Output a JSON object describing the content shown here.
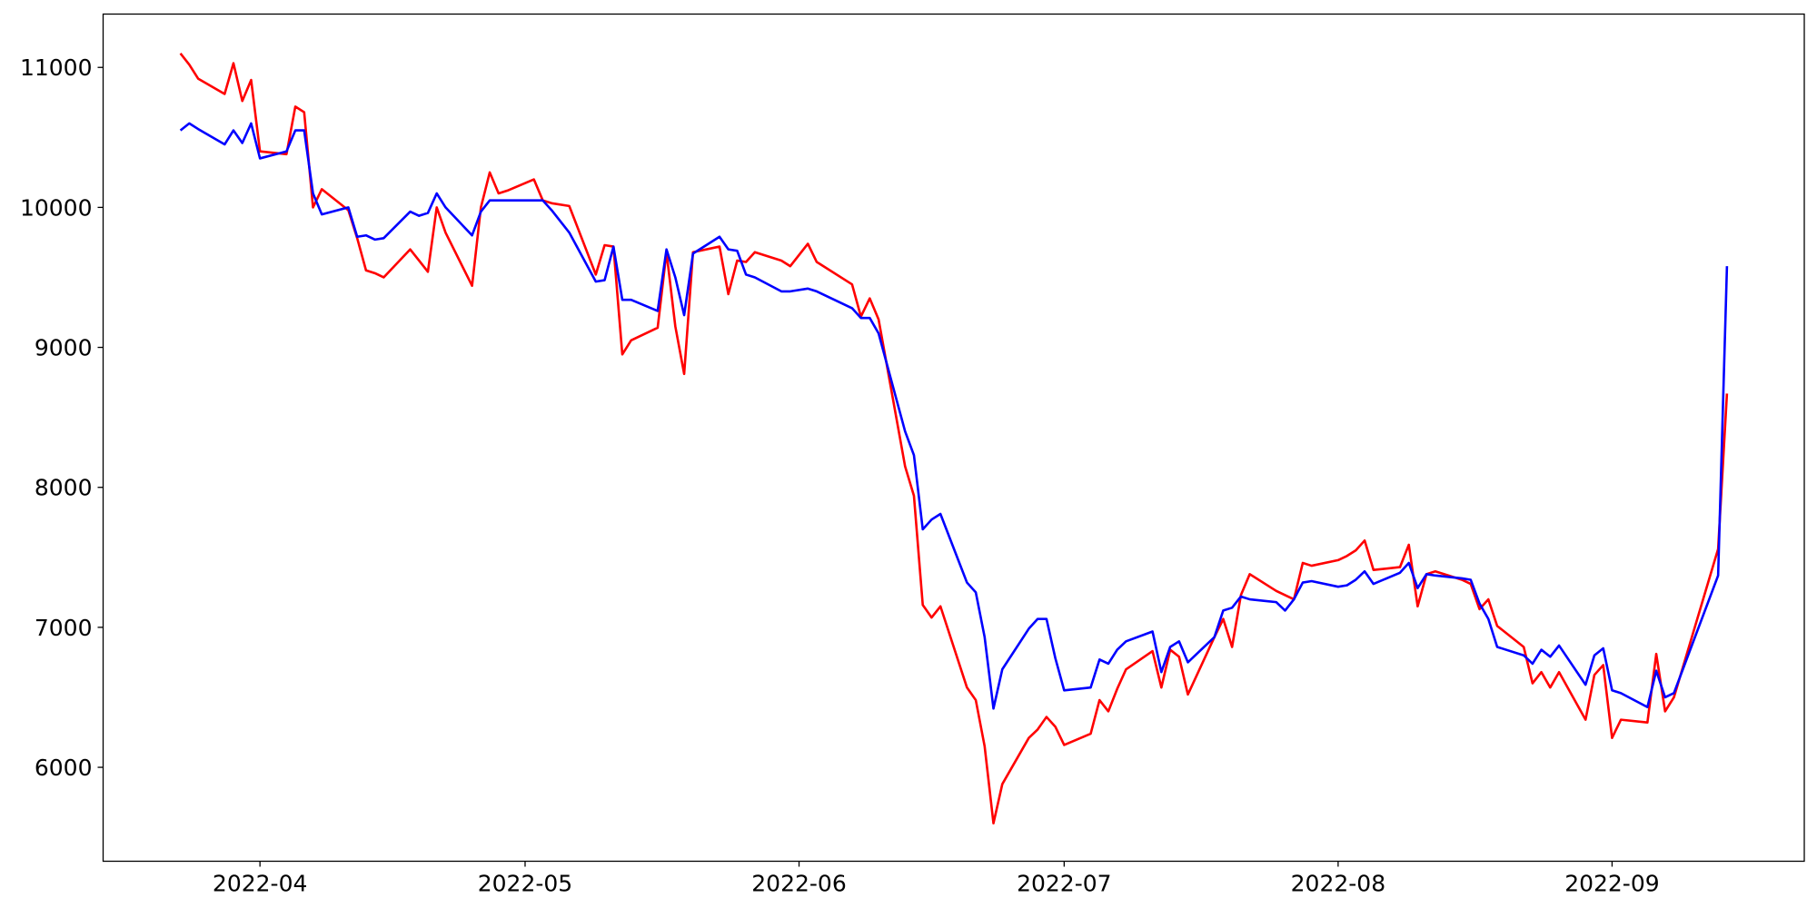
{
  "chart_data": {
    "type": "line",
    "x": [
      19074,
      19075,
      19076,
      19079,
      19080,
      19081,
      19082,
      19083,
      19086,
      19087,
      19088,
      19089,
      19090,
      19093,
      19094,
      19095,
      19096,
      19097,
      19100,
      19101,
      19102,
      19103,
      19104,
      19107,
      19108,
      19109,
      19110,
      19111,
      19114,
      19115,
      19116,
      19118,
      19121,
      19122,
      19123,
      19124,
      19125,
      19128,
      19129,
      19130,
      19131,
      19132,
      19135,
      19136,
      19137,
      19138,
      19139,
      19142,
      19143,
      19145,
      19146,
      19150,
      19151,
      19152,
      19153,
      19156,
      19157,
      19158,
      19159,
      19160,
      19163,
      19164,
      19165,
      19166,
      19167,
      19170,
      19171,
      19172,
      19173,
      19174,
      19177,
      19178,
      19179,
      19180,
      19181,
      19184,
      19185,
      19186,
      19187,
      19188,
      19191,
      19192,
      19193,
      19194,
      19195,
      19198,
      19199,
      19200,
      19201,
      19202,
      19205,
      19206,
      19207,
      19208,
      19209,
      19212,
      19213,
      19214,
      19215,
      19216,
      19219,
      19220,
      19221,
      19222,
      19223,
      19226,
      19227,
      19228,
      19229,
      19230,
      19233,
      19234,
      19235,
      19236,
      19237,
      19240,
      19241,
      19242,
      19243,
      19248,
      19249
    ],
    "series": [
      {
        "color": "red",
        "values": [
          11100,
          11020,
          10920,
          10810,
          11030,
          10760,
          10910,
          10400,
          10380,
          10720,
          10680,
          10000,
          10130,
          9980,
          9780,
          9550,
          9530,
          9500,
          9700,
          9620,
          9540,
          10000,
          9820,
          9440,
          10000,
          10250,
          10100,
          10120,
          10200,
          10050,
          10030,
          10010,
          9520,
          9730,
          9720,
          8950,
          9050,
          9140,
          9680,
          9150,
          8810,
          9680,
          9720,
          9380,
          9620,
          9610,
          9680,
          9620,
          9580,
          9740,
          9610,
          9450,
          9220,
          9350,
          9200,
          8150,
          7940,
          7160,
          7070,
          7150,
          6570,
          6480,
          6150,
          5600,
          5880,
          6210,
          6270,
          6360,
          6290,
          6160,
          6240,
          6480,
          6400,
          6560,
          6700,
          6830,
          6570,
          6840,
          6790,
          6520,
          6930,
          7060,
          6860,
          7230,
          7380,
          7260,
          7230,
          7200,
          7460,
          7440,
          7480,
          7510,
          7550,
          7620,
          7410,
          7430,
          7590,
          7150,
          7380,
          7400,
          7340,
          7310,
          7130,
          7200,
          7010,
          6860,
          6600,
          6680,
          6570,
          6680,
          6340,
          6660,
          6730,
          6210,
          6340,
          6320,
          6810,
          6400,
          6500,
          7560,
          8670
        ]
      },
      {
        "color": "blue",
        "values": [
          10550,
          10600,
          10560,
          10450,
          10550,
          10460,
          10600,
          10350,
          10400,
          10550,
          10550,
          10100,
          9950,
          10000,
          9790,
          9800,
          9770,
          9780,
          9970,
          9940,
          9960,
          10100,
          10000,
          9800,
          9970,
          10050,
          10050,
          10050,
          10050,
          10050,
          9980,
          9820,
          9470,
          9480,
          9720,
          9340,
          9340,
          9260,
          9700,
          9500,
          9230,
          9670,
          9790,
          9700,
          9690,
          9520,
          9500,
          9400,
          9400,
          9420,
          9400,
          9280,
          9210,
          9210,
          9100,
          8400,
          8230,
          7700,
          7770,
          7810,
          7320,
          7250,
          6930,
          6420,
          6700,
          6990,
          7060,
          7060,
          6780,
          6550,
          6570,
          6770,
          6740,
          6840,
          6900,
          6970,
          6680,
          6860,
          6900,
          6750,
          6930,
          7120,
          7140,
          7220,
          7200,
          7180,
          7120,
          7200,
          7320,
          7330,
          7290,
          7300,
          7340,
          7400,
          7310,
          7390,
          7460,
          7280,
          7380,
          7370,
          7350,
          7340,
          7170,
          7060,
          6860,
          6800,
          6740,
          6840,
          6790,
          6870,
          6590,
          6800,
          6850,
          6550,
          6530,
          6430,
          6690,
          6500,
          6530,
          7370,
          9580
        ]
      }
    ],
    "xlim": [
      19065.25,
      19257.75
    ],
    "xticks": [
      {
        "value": 19083,
        "label": "2022-04"
      },
      {
        "value": 19113,
        "label": "2022-05"
      },
      {
        "value": 19144,
        "label": "2022-06"
      },
      {
        "value": 19174,
        "label": "2022-07"
      },
      {
        "value": 19205,
        "label": "2022-08"
      },
      {
        "value": 19236,
        "label": "2022-09"
      }
    ],
    "ylim": [
      5329,
      11381
    ],
    "yticks": [
      6000,
      7000,
      8000,
      9000,
      10000,
      11000
    ],
    "grid": false
  }
}
